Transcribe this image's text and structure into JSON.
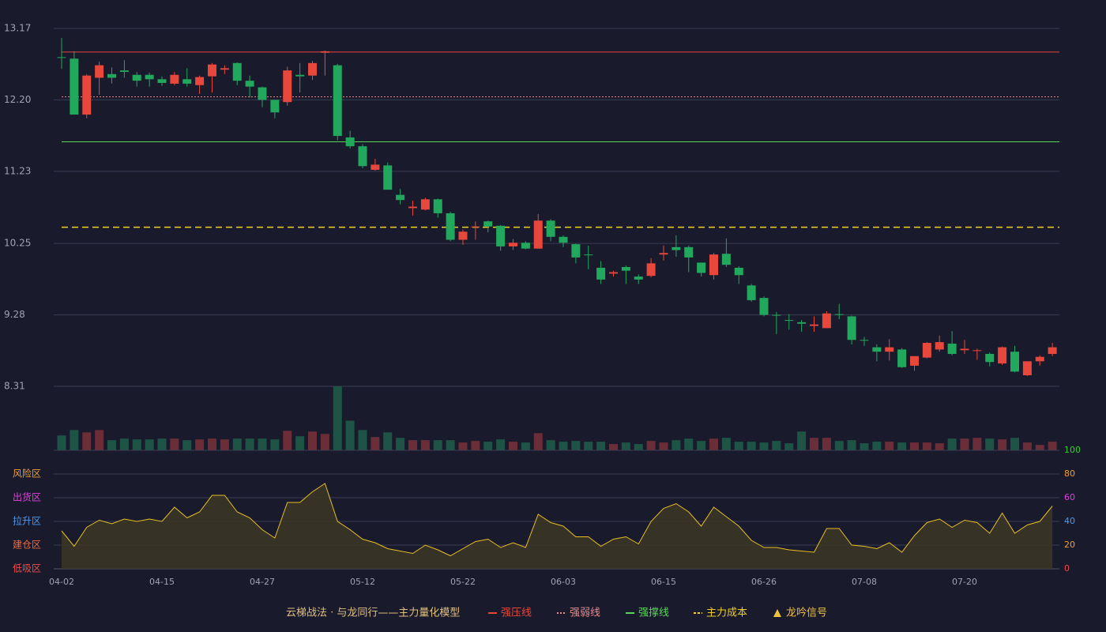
{
  "chart_data": [
    {
      "type": "candlestick",
      "title": "云梯战法 · 与龙同行——主力量化模型",
      "categories": [
        "04-02",
        null,
        null,
        null,
        null,
        null,
        null,
        null,
        "04-15",
        null,
        null,
        null,
        null,
        null,
        null,
        null,
        "04-27",
        null,
        null,
        null,
        null,
        null,
        null,
        null,
        "05-12",
        null,
        null,
        null,
        null,
        null,
        null,
        null,
        "05-22",
        null,
        null,
        null,
        null,
        null,
        null,
        null,
        "06-03",
        null,
        null,
        null,
        null,
        null,
        null,
        null,
        "06-15",
        null,
        null,
        null,
        null,
        null,
        null,
        null,
        "06-26",
        null,
        null,
        null,
        null,
        null,
        null,
        null,
        "07-08",
        null,
        null,
        null,
        null,
        null,
        null,
        null,
        "07-20",
        null,
        null,
        null,
        null,
        null,
        null,
        null
      ],
      "open": [
        12.78,
        12.76,
        12.0,
        12.5,
        12.55,
        12.6,
        12.54,
        12.54,
        12.48,
        12.42,
        12.48,
        12.4,
        12.52,
        12.61,
        12.7,
        12.46,
        12.37,
        12.2,
        12.17,
        12.54,
        12.53,
        12.84,
        12.67,
        11.69,
        11.57,
        11.25,
        11.31,
        10.91,
        10.73,
        10.71,
        10.85,
        10.66,
        10.3,
        10.47,
        10.55,
        10.49,
        10.21,
        10.26,
        10.18,
        10.56,
        10.34,
        10.24,
        10.1,
        9.92,
        9.84,
        9.93,
        9.8,
        9.81,
        10.1,
        10.2,
        10.2,
        9.99,
        9.82,
        10.11,
        9.92,
        9.68,
        9.51,
        9.28,
        9.21,
        9.18,
        9.13,
        9.1,
        9.29,
        9.26,
        8.94,
        8.84,
        8.78,
        8.81,
        8.59,
        8.7,
        8.81,
        8.89,
        8.8,
        8.79,
        8.75,
        8.62,
        8.78,
        8.46,
        8.65,
        8.75
      ],
      "high": [
        13.04,
        12.86,
        12.55,
        12.72,
        12.64,
        12.74,
        12.58,
        12.57,
        12.52,
        12.58,
        12.63,
        12.53,
        12.7,
        12.67,
        12.71,
        12.53,
        12.38,
        12.2,
        12.65,
        12.7,
        12.73,
        12.87,
        12.69,
        11.78,
        11.6,
        11.4,
        11.35,
        10.99,
        10.83,
        10.87,
        10.86,
        10.68,
        10.44,
        10.55,
        10.56,
        10.5,
        10.31,
        10.28,
        10.65,
        10.58,
        10.36,
        10.25,
        10.22,
        10.01,
        9.88,
        9.95,
        9.83,
        10.05,
        10.22,
        10.36,
        10.22,
        9.99,
        10.12,
        10.32,
        9.94,
        9.7,
        9.53,
        9.32,
        9.29,
        9.21,
        9.26,
        9.33,
        9.43,
        9.27,
        8.98,
        8.88,
        8.95,
        8.83,
        8.72,
        8.91,
        9.0,
        9.06,
        8.94,
        8.82,
        8.77,
        8.85,
        8.86,
        8.65,
        8.73,
        8.9
      ],
      "low": [
        12.62,
        12.0,
        11.95,
        12.27,
        12.42,
        12.5,
        12.38,
        12.38,
        12.39,
        12.4,
        12.38,
        12.28,
        12.3,
        12.55,
        12.4,
        12.23,
        12.1,
        11.95,
        12.12,
        12.3,
        12.47,
        12.53,
        11.65,
        11.54,
        11.27,
        11.24,
        10.98,
        10.78,
        10.63,
        10.7,
        10.6,
        10.28,
        10.23,
        10.3,
        10.4,
        10.15,
        10.16,
        10.17,
        10.18,
        10.28,
        10.2,
        9.98,
        9.9,
        9.7,
        9.8,
        9.7,
        9.7,
        9.79,
        10.02,
        10.07,
        9.86,
        9.8,
        9.76,
        9.93,
        9.7,
        9.46,
        9.26,
        9.02,
        9.08,
        9.05,
        9.05,
        9.1,
        9.22,
        8.88,
        8.86,
        8.65,
        8.66,
        8.56,
        8.52,
        8.69,
        8.78,
        8.73,
        8.75,
        8.67,
        8.58,
        8.6,
        8.5,
        8.45,
        8.59,
        8.72
      ],
      "close": [
        12.77,
        12.0,
        12.53,
        12.67,
        12.5,
        12.58,
        12.46,
        12.48,
        12.43,
        12.54,
        12.42,
        12.51,
        12.68,
        12.63,
        12.46,
        12.38,
        12.2,
        12.03,
        12.6,
        12.52,
        12.7,
        12.86,
        11.71,
        11.57,
        11.3,
        11.32,
        10.98,
        10.84,
        10.75,
        10.85,
        10.66,
        10.3,
        10.41,
        10.48,
        10.48,
        10.21,
        10.26,
        10.18,
        10.56,
        10.34,
        10.26,
        10.06,
        10.09,
        9.76,
        9.86,
        9.88,
        9.76,
        9.98,
        10.12,
        10.16,
        10.06,
        9.85,
        10.1,
        9.96,
        9.82,
        9.48,
        9.28,
        9.27,
        9.2,
        9.16,
        9.15,
        9.3,
        9.28,
        8.94,
        8.93,
        8.78,
        8.84,
        8.57,
        8.72,
        8.9,
        8.91,
        8.75,
        8.82,
        8.8,
        8.64,
        8.84,
        8.51,
        8.65,
        8.71,
        8.84
      ],
      "up_color": "#e8483c",
      "down_color": "#21a85d",
      "ylim": [
        8.31,
        13.17
      ],
      "yticks": [
        8.31,
        9.28,
        10.25,
        11.23,
        {
          "value": 12.2,
          "label": "12.20"
        },
        13.17
      ],
      "grid": true,
      "levels": [
        {
          "name": "强压线",
          "value": 12.85,
          "color": "#e8483c",
          "style": "solid"
        },
        {
          "name": "强弱线",
          "value": 12.24,
          "color": "#f08a8a",
          "style": "dotted"
        },
        {
          "name": "强撑线",
          "value": 11.63,
          "color": "#5ad65a",
          "style": "solid"
        },
        {
          "name": "主力成本",
          "value": 10.47,
          "color": "#f0d020",
          "style": "dashed"
        }
      ],
      "signal": {
        "name": "龙吟信号",
        "color": "#f0c040"
      }
    },
    {
      "type": "bar",
      "values": [
        19,
        26,
        23,
        26,
        13,
        15,
        14,
        14,
        15,
        15,
        13,
        14,
        15,
        14,
        15,
        15,
        15,
        14,
        25,
        18,
        24,
        21,
        82,
        38,
        26,
        17,
        23,
        16,
        13,
        13,
        13,
        13,
        10,
        12,
        11,
        14,
        11,
        10,
        22,
        13,
        11,
        12,
        11,
        11,
        8,
        10,
        8,
        12,
        10,
        13,
        15,
        12,
        15,
        16,
        11,
        11,
        10,
        12,
        9,
        24,
        16,
        16,
        12,
        13,
        9,
        11,
        11,
        10,
        10,
        10,
        9,
        15,
        15,
        16,
        15,
        14,
        16,
        10,
        7,
        11
      ],
      "up_color": "#6b2d38",
      "down_color": "#1e5446"
    },
    {
      "type": "area",
      "values": [
        32,
        19,
        35,
        41,
        38,
        42,
        40,
        42,
        40,
        52,
        43,
        48,
        62,
        62,
        48,
        43,
        33,
        26,
        56,
        56,
        65,
        72,
        40,
        33,
        25,
        22,
        17,
        15,
        13,
        20,
        16,
        11,
        17,
        23,
        25,
        18,
        22,
        18,
        46,
        39,
        36,
        27,
        27,
        19,
        25,
        27,
        21,
        40,
        51,
        55,
        48,
        36,
        52,
        44,
        36,
        24,
        18,
        18,
        16,
        15,
        14,
        34,
        34,
        20,
        19,
        17,
        22,
        14,
        28,
        39,
        42,
        35,
        41,
        39,
        30,
        47,
        30,
        37,
        40,
        53
      ],
      "color": "#e6bf22",
      "fill": "#3a3526",
      "ylim": [
        0,
        100
      ],
      "yticks": [
        0,
        20,
        40,
        60,
        80,
        100
      ],
      "ytick_colors": [
        "#f04a4a",
        "#f0a030",
        "#4a9af0",
        "#e040e0",
        "#f0a030",
        "#30d030"
      ],
      "zones": [
        {
          "label": "风险区",
          "value": 80,
          "color": "#f0a030"
        },
        {
          "label": "出货区",
          "value": 60,
          "color": "#e040e0"
        },
        {
          "label": "拉升区",
          "value": 40,
          "color": "#4a9af0"
        },
        {
          "label": "建仓区",
          "value": 20,
          "color": "#f06a40"
        },
        {
          "label": "低吸区",
          "value": 0,
          "color": "#f04a4a"
        }
      ]
    }
  ]
}
